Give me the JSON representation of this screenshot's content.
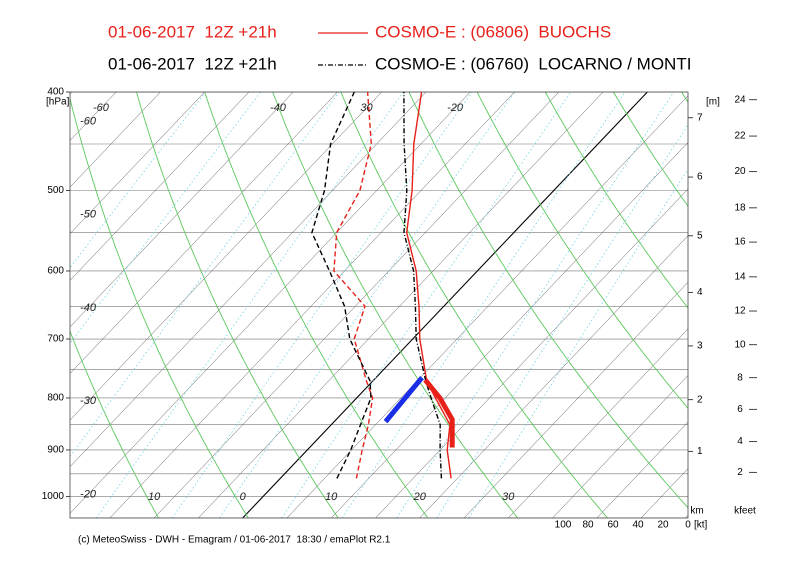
{
  "chart_data": {
    "type": "emagram",
    "series": [
      {
        "run": "01-06-2017  12Z +21h",
        "name": "COSMO-E : (06806)  BUOCHS",
        "color": "#e8201a",
        "line_style": "solid",
        "pressure": [
          960,
          900,
          850,
          800,
          770,
          700,
          650,
          600,
          550,
          500,
          450,
          400
        ],
        "temperature": [
          19.3,
          15.8,
          13.4,
          8.9,
          6.1,
          0.8,
          -2.8,
          -6.9,
          -12.1,
          -16,
          -20.8,
          -25.5
        ],
        "dewpoint": [
          8.6,
          6.2,
          4.2,
          1.8,
          -0.7,
          -6.6,
          -8.9,
          -16.2,
          -20,
          -21.9,
          -25.6,
          -31.6
        ]
      },
      {
        "run": "01-06-2017  12Z +21h",
        "name": "COSMO-E : (06760)  LOCARNO / MONTI",
        "color": "#000000",
        "line_style": "dashdot",
        "pressure": [
          960,
          900,
          850,
          800,
          770,
          700,
          650,
          600,
          550,
          500,
          450,
          400
        ],
        "temperature": [
          18.2,
          15.0,
          12.3,
          8.4,
          6.0,
          0.4,
          -3.2,
          -7.2,
          -12.4,
          -16.6,
          -21.9,
          -27.5
        ],
        "dewpoint": [
          6.4,
          4.9,
          3.3,
          1.6,
          -0.3,
          -7.1,
          -11.2,
          -16.7,
          -22.8,
          -25.9,
          -30.2,
          -33.1
        ]
      }
    ],
    "segments": [
      {
        "color": "#1a2ee8",
        "pressure": [
          844,
          764
        ],
        "temperature": [
          5.8,
          5.2
        ]
      },
      {
        "color": "#e8201a",
        "pressure": [
          768,
          800,
          840,
          895
        ],
        "temperature": [
          5.8,
          9.4,
          13.1,
          16.1
        ]
      }
    ],
    "ylim": [
      1050,
      400
    ],
    "yscale": "log",
    "yticks": [
      1000,
      900,
      800,
      700,
      600,
      500,
      400
    ],
    "ylabel": "[hPa]",
    "xlim": [
      -19.5,
      50.3
    ],
    "xticks": [
      {
        "value": -10,
        "label": "10"
      },
      0,
      10,
      20,
      30
    ],
    "isotherm_labels_top": [
      -60,
      -40,
      {
        "value": -30,
        "label": "30"
      },
      -20
    ],
    "isotherm_labels_left": [
      -60,
      -50,
      -40,
      -30,
      -20
    ],
    "height_axis": {
      "label": "[m]",
      "unit": "km",
      "ticks": [
        1,
        2,
        3,
        4,
        5,
        6,
        7
      ],
      "pressures": [
        903,
        803,
        711,
        630,
        554,
        485,
        424
      ]
    },
    "kfeet_axis": {
      "label": "kfeet",
      "ticks": [
        2,
        4,
        6,
        8,
        10,
        12,
        14,
        16,
        18,
        20,
        22,
        24
      ],
      "pressures": [
        947,
        883,
        821,
        764,
        709,
        657,
        608,
        562,
        520,
        479,
        442,
        407
      ]
    },
    "wind_axis": {
      "label": "[kt]",
      "lim": [
        0,
        100
      ],
      "ticks": [
        100,
        80,
        60,
        40,
        20,
        0
      ]
    },
    "footer": "(c) MeteoSwiss - DWH - Emagram / 01-06-2017  18:30 / emaPlot R2.1"
  }
}
